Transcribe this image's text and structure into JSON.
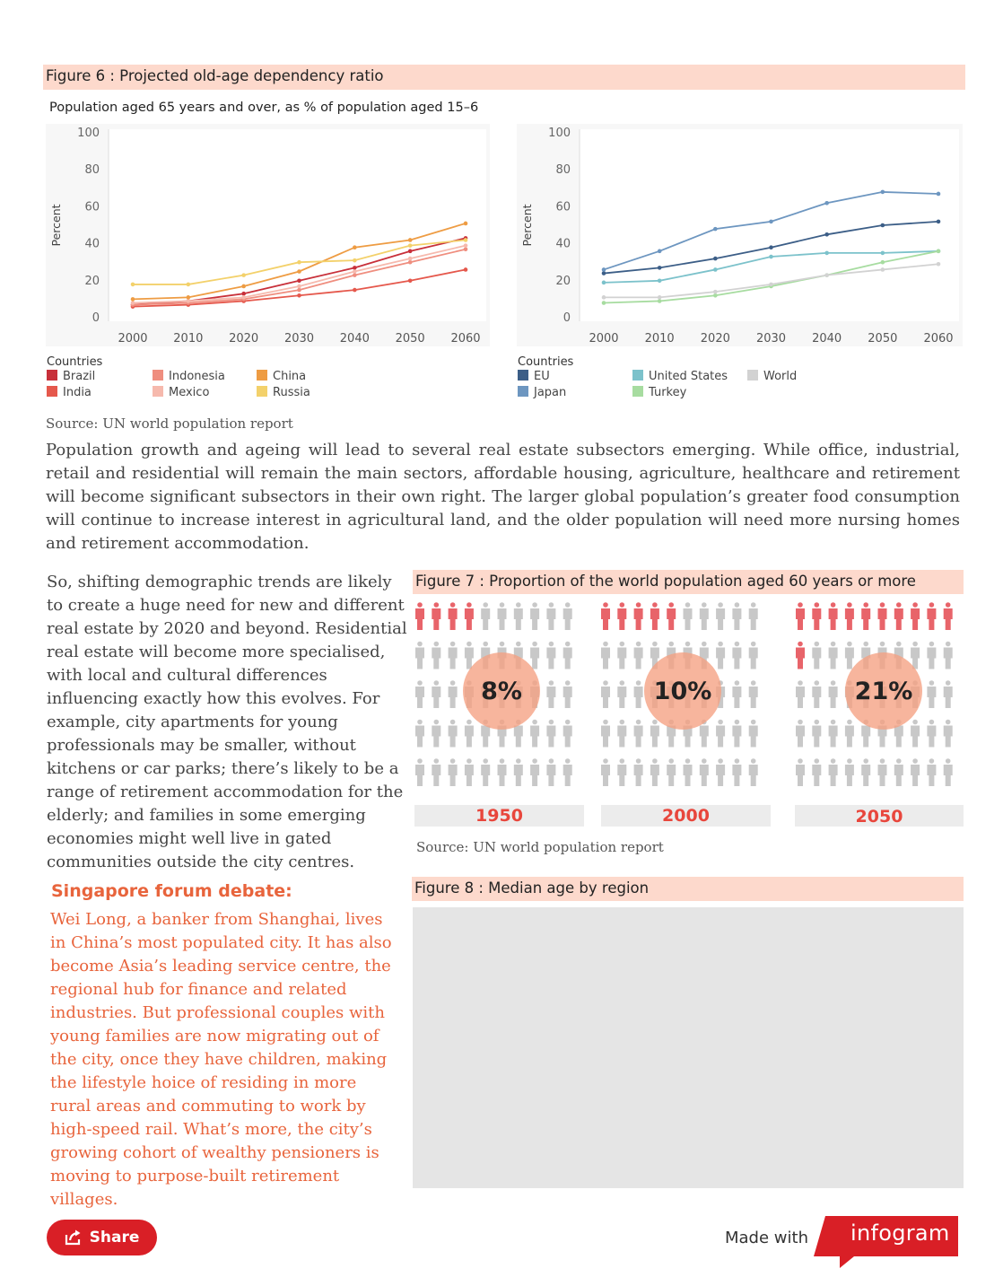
{
  "figure6": {
    "title": "Figure 6 : Projected old-age dependency ratio",
    "subtitle": "Population aged 65 years and over, as % of population aged 15–6",
    "source": "Source: UN world population report"
  },
  "chart_data": [
    {
      "type": "line",
      "ylabel": "Percent",
      "xlabel": "",
      "ylim": [
        0,
        100
      ],
      "yticks": [
        0,
        20,
        40,
        60,
        80,
        100
      ],
      "x": [
        2000,
        2010,
        2020,
        2030,
        2040,
        2050,
        2060
      ],
      "grid": false,
      "legend": {
        "title": "Countries",
        "placement": "bottom-left"
      },
      "series": [
        {
          "name": "Brazil",
          "color": "#c8303a",
          "values": [
            7,
            9,
            13,
            20,
            27,
            36,
            43
          ]
        },
        {
          "name": "India",
          "color": "#e5584c",
          "values": [
            6,
            7,
            9,
            12,
            15,
            20,
            26
          ]
        },
        {
          "name": "Indonesia",
          "color": "#ef8e7f",
          "values": [
            7,
            8,
            10,
            15,
            23,
            30,
            37
          ]
        },
        {
          "name": "Mexico",
          "color": "#f6b9ad",
          "values": [
            8,
            9,
            11,
            17,
            25,
            32,
            39
          ]
        },
        {
          "name": "China",
          "color": "#ee9c43",
          "values": [
            10,
            11,
            17,
            25,
            38,
            42,
            51
          ]
        },
        {
          "name": "Russia",
          "color": "#f3d16b",
          "values": [
            18,
            18,
            23,
            30,
            31,
            39,
            42
          ]
        }
      ]
    },
    {
      "type": "line",
      "ylabel": "Percent",
      "xlabel": "",
      "ylim": [
        0,
        100
      ],
      "yticks": [
        0,
        20,
        40,
        60,
        80,
        100
      ],
      "x": [
        2000,
        2010,
        2020,
        2030,
        2040,
        2050,
        2060
      ],
      "grid": false,
      "legend": {
        "title": "Countries",
        "placement": "bottom-left"
      },
      "series": [
        {
          "name": "EU",
          "color": "#3c5e87",
          "values": [
            24,
            27,
            32,
            38,
            45,
            50,
            52
          ]
        },
        {
          "name": "Japan",
          "color": "#6d96c0",
          "values": [
            26,
            36,
            48,
            52,
            62,
            68,
            67
          ]
        },
        {
          "name": "United States",
          "color": "#7cc2cb",
          "values": [
            19,
            20,
            26,
            33,
            35,
            35,
            36
          ]
        },
        {
          "name": "Turkey",
          "color": "#a7dca0",
          "values": [
            8,
            9,
            12,
            17,
            23,
            30,
            36
          ]
        },
        {
          "name": "World",
          "color": "#d2d2d2",
          "values": [
            11,
            11,
            14,
            18,
            23,
            26,
            29
          ]
        }
      ]
    }
  ],
  "paragraph1": "Population growth and ageing will lead to several real estate subsectors emerging. While office, industrial, retail and residential will remain the main sectors, affordable housing, agriculture, healthcare and retirement will become significant subsectors in their own right. The larger global population’s greater food consumption will continue to increase interest in agricultural land, and the older population will need more nursing homes and retirement accommodation.",
  "paragraph2": "So, shifting demographic trends are likely to create a huge need for new and different real estate by 2020 and beyond. Residential real estate will become more specialised, with local and cultural differences influencing exactly how this evolves. For example, city apartments for young professionals may be smaller, without kitchens or car parks; there’s likely to be a range of retirement accommodation for the elderly; and families in some emerging economies might well live in gated communities outside the city centres.",
  "figure7": {
    "title": "Figure 7 : Proportion of the world population aged 60 years or more",
    "source": "Source: UN world population report",
    "panels": [
      {
        "year": "1950",
        "label": "8%",
        "value": 8,
        "total_icons": 50
      },
      {
        "year": "2000",
        "label": "10%",
        "value": 10,
        "total_icons": 50
      },
      {
        "year": "2050",
        "label": "21%",
        "value": 21,
        "total_icons": 50
      }
    ],
    "colors": {
      "highlight": "#e8646a",
      "base": "#c8c8c8"
    }
  },
  "forum": {
    "heading": "Singapore forum debate:",
    "text": "Wei Long, a banker from Shanghai, lives in China’s most populated city. It has also become Asia’s leading service centre, the regional hub for finance and related industries. But professional couples with young families are now migrating out of the city, once they have children, making the lifestyle hoice of residing in more rural areas and commuting to work by high-speed rail. What’s more, the city’s growing cohort of wealthy pensioners is moving to purpose-built retirement villages."
  },
  "figure8": {
    "title": "Figure 8 : Median age by region"
  },
  "footer": {
    "share_label": "Share",
    "made_with": "Made with",
    "brand": "infogram",
    "share_icon": "share-icon",
    "brand_color": "#d91f26"
  }
}
